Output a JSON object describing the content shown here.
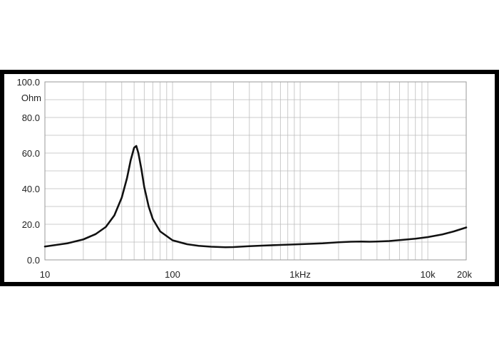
{
  "chart_data": {
    "type": "line",
    "title": "",
    "xlabel": "",
    "ylabel": "Ohm",
    "x_scale": "log",
    "xlim": [
      10,
      20000
    ],
    "ylim": [
      0,
      100
    ],
    "grid": true,
    "x_ticks": [
      {
        "value": 10,
        "label": "10"
      },
      {
        "value": 100,
        "label": "100"
      },
      {
        "value": 1000,
        "label": "1kHz"
      },
      {
        "value": 10000,
        "label": "10k"
      },
      {
        "value": 20000,
        "label": "20k"
      }
    ],
    "y_ticks": [
      {
        "value": 0,
        "label": "0.0"
      },
      {
        "value": 20,
        "label": "20.0"
      },
      {
        "value": 40,
        "label": "40.0"
      },
      {
        "value": 60,
        "label": "60.0"
      },
      {
        "value": 80,
        "label": "80.0"
      },
      {
        "value": 100,
        "label": "100.0"
      }
    ],
    "series": [
      {
        "color": "#111111",
        "x": [
          10,
          15,
          20,
          25,
          30,
          35,
          40,
          44,
          47,
          50,
          52,
          54,
          57,
          60,
          65,
          70,
          80,
          100,
          130,
          160,
          200,
          260,
          300,
          400,
          500,
          700,
          1000,
          1500,
          2000,
          2500,
          3000,
          3500,
          4000,
          5000,
          6000,
          8000,
          10000,
          13000,
          16000,
          20000
        ],
        "values": [
          7.5,
          9.3,
          11.5,
          14.5,
          18.5,
          25,
          35,
          46,
          56,
          63,
          64,
          60,
          51,
          41,
          30,
          23,
          16,
          11,
          8.8,
          7.9,
          7.4,
          7.1,
          7.2,
          7.7,
          8.0,
          8.4,
          8.8,
          9.3,
          9.9,
          10.2,
          10.3,
          10.2,
          10.3,
          10.6,
          11.1,
          11.9,
          12.8,
          14.3,
          16.0,
          18.2
        ]
      }
    ]
  }
}
